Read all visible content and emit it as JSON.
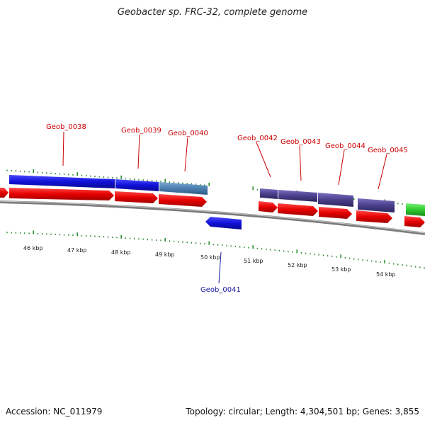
{
  "title": "Geobacter sp. FRC-32, complete genome",
  "footer": {
    "accession": "Accession: NC_011979",
    "summary": "Topology: circular; Length: 4,304,501 bp; Genes: 3,855"
  },
  "colors": {
    "label_forward": "#cc0000",
    "label_reverse": "#1a1aa0",
    "gene_red": "#e60000",
    "gene_blue": "#1010d8",
    "gene_steel": "#4a7fb0",
    "gene_purple": "#4a3f8c",
    "gene_green": "#2ecc2e",
    "tick_green": "#2e8b2e",
    "backbone": "#8a8a8a"
  },
  "tick_labels": [
    "46 kbp",
    "47 kbp",
    "48 kbp",
    "49 kbp",
    "50 kbp",
    "51 kbp",
    "52 kbp",
    "53 kbp",
    "54 kbp"
  ],
  "gene_labels": [
    {
      "name": "Geob_0038",
      "strand": "forward"
    },
    {
      "name": "Geob_0039",
      "strand": "forward"
    },
    {
      "name": "Geob_0040",
      "strand": "forward"
    },
    {
      "name": "Geob_0041",
      "strand": "reverse"
    },
    {
      "name": "Geob_0042",
      "strand": "forward"
    },
    {
      "name": "Geob_0043",
      "strand": "forward"
    },
    {
      "name": "Geob_0044",
      "strand": "forward"
    },
    {
      "name": "Geob_0045",
      "strand": "forward"
    }
  ]
}
